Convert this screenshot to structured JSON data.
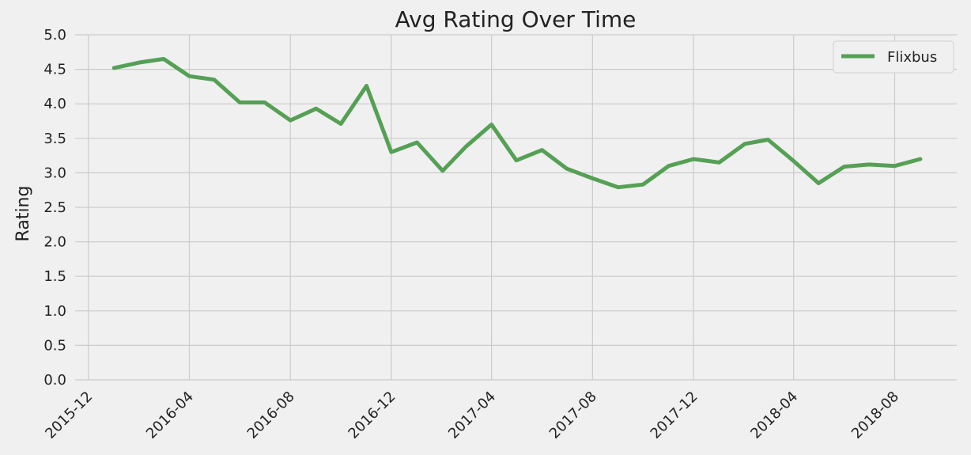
{
  "chart_data": {
    "type": "line",
    "title": "Avg Rating Over Time",
    "xlabel": "",
    "ylabel": "Rating",
    "ylim": [
      0,
      5
    ],
    "yticks": [
      "0.0",
      "0.5",
      "1.0",
      "1.5",
      "2.0",
      "2.5",
      "3.0",
      "3.5",
      "4.0",
      "4.5",
      "5.0"
    ],
    "xlim": [
      "2015-11-15",
      "2018-10-15"
    ],
    "xticks": [
      "2015-12",
      "2016-04",
      "2016-08",
      "2016-12",
      "2017-04",
      "2017-08",
      "2017-12",
      "2018-04",
      "2018-08"
    ],
    "grid": true,
    "legend_position": "top-right",
    "series": [
      {
        "name": "Flixbus",
        "color": "#55a055",
        "x": [
          "2016-01",
          "2016-02",
          "2016-03",
          "2016-04",
          "2016-05",
          "2016-06",
          "2016-07",
          "2016-08",
          "2016-09",
          "2016-10",
          "2016-11",
          "2016-12",
          "2017-01",
          "2017-02",
          "2017-03",
          "2017-04",
          "2017-05",
          "2017-06",
          "2017-07",
          "2017-08",
          "2017-09",
          "2017-10",
          "2017-11",
          "2017-12",
          "2018-01",
          "2018-02",
          "2018-03",
          "2018-04",
          "2018-05",
          "2018-06",
          "2018-07",
          "2018-08",
          "2018-09"
        ],
        "values": [
          4.52,
          4.6,
          4.65,
          4.4,
          4.35,
          4.02,
          4.02,
          3.76,
          3.93,
          3.71,
          4.26,
          3.3,
          3.44,
          3.03,
          3.38,
          3.7,
          3.18,
          3.33,
          3.06,
          2.92,
          2.79,
          2.83,
          3.1,
          3.2,
          3.15,
          3.42,
          3.48,
          3.17,
          2.85,
          3.09,
          3.12,
          3.1,
          3.2
        ]
      }
    ]
  }
}
